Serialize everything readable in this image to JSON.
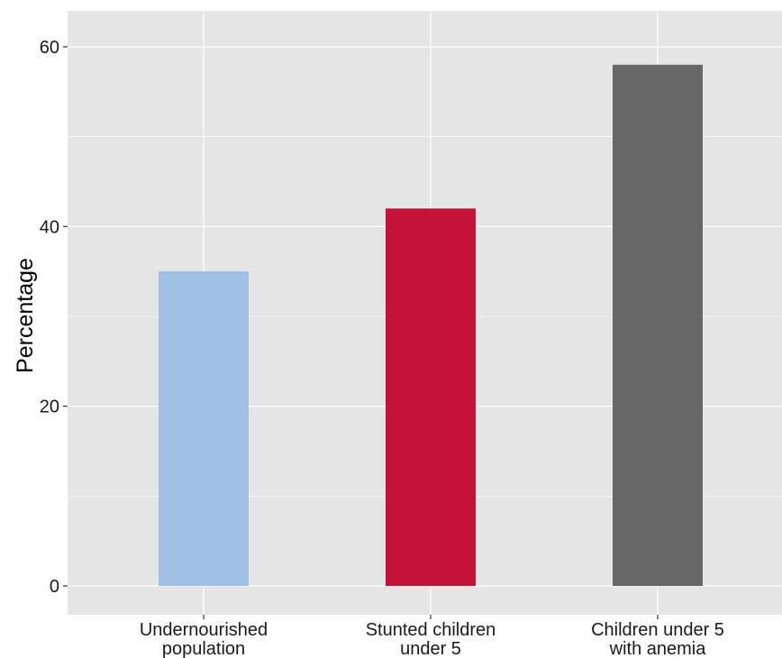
{
  "chart_data": {
    "type": "bar",
    "categories": [
      [
        "Undernourished",
        "population"
      ],
      [
        "Stunted children",
        "under 5"
      ],
      [
        "Children under 5",
        "with anemia"
      ]
    ],
    "values": [
      35,
      42,
      58
    ],
    "colors": [
      "#9fbfe5",
      "#c41239",
      "#666666"
    ],
    "ylabel": "Percentage",
    "xlabel": "",
    "title": "",
    "ylim": [
      -3.2,
      64
    ],
    "yticks": [
      0,
      20,
      40,
      60
    ],
    "grid": true,
    "panel_background": "#e5e5e5",
    "grid_color": "#ffffff"
  }
}
